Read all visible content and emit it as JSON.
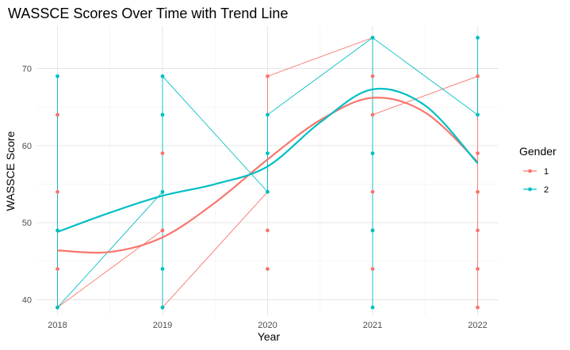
{
  "chart_data": {
    "type": "line",
    "title": "WASSCE Scores Over Time with Trend Line",
    "xlabel": "Year",
    "ylabel": "WASSCE Score",
    "x_ticks": [
      2018,
      2019,
      2020,
      2021,
      2022
    ],
    "y_ticks": [
      40,
      50,
      60,
      70
    ],
    "xlim": [
      2017.8,
      2022.2
    ],
    "ylim": [
      38,
      75.5
    ],
    "grid": true,
    "legend": {
      "title": "Gender",
      "position": "right"
    },
    "colors": {
      "1": "#F8766D",
      "2": "#00BFC4"
    },
    "series": [
      {
        "name": "1",
        "color": "#F8766D",
        "points": [
          {
            "x": 2018,
            "y": 64
          },
          {
            "x": 2018,
            "y": 54
          },
          {
            "x": 2018,
            "y": 44
          },
          {
            "x": 2018,
            "y": 39
          },
          {
            "x": 2019,
            "y": 59
          },
          {
            "x": 2019,
            "y": 49
          },
          {
            "x": 2019,
            "y": 39
          },
          {
            "x": 2020,
            "y": 69
          },
          {
            "x": 2020,
            "y": 54
          },
          {
            "x": 2020,
            "y": 49
          },
          {
            "x": 2020,
            "y": 44
          },
          {
            "x": 2021,
            "y": 74
          },
          {
            "x": 2021,
            "y": 69
          },
          {
            "x": 2021,
            "y": 64
          },
          {
            "x": 2021,
            "y": 54
          },
          {
            "x": 2021,
            "y": 49
          },
          {
            "x": 2021,
            "y": 44
          },
          {
            "x": 2022,
            "y": 69
          },
          {
            "x": 2022,
            "y": 59
          },
          {
            "x": 2022,
            "y": 54
          },
          {
            "x": 2022,
            "y": 49
          },
          {
            "x": 2022,
            "y": 44
          },
          {
            "x": 2022,
            "y": 39
          }
        ],
        "path": [
          {
            "x": 2018,
            "y": 64
          },
          {
            "x": 2018,
            "y": 39
          },
          {
            "x": 2019,
            "y": 49
          },
          {
            "x": 2019,
            "y": 39
          },
          {
            "x": 2020,
            "y": 54
          },
          {
            "x": 2020,
            "y": 69
          },
          {
            "x": 2021,
            "y": 74
          },
          {
            "x": 2021,
            "y": 64
          },
          {
            "x": 2022,
            "y": 69
          },
          {
            "x": 2022,
            "y": 39
          }
        ],
        "trend": [
          {
            "x": 2018,
            "y": 46.4
          },
          {
            "x": 2018.5,
            "y": 46.2
          },
          {
            "x": 2019,
            "y": 48.1
          },
          {
            "x": 2019.5,
            "y": 52.6
          },
          {
            "x": 2020,
            "y": 58.2
          },
          {
            "x": 2020.5,
            "y": 63.3
          },
          {
            "x": 2021,
            "y": 66.2
          },
          {
            "x": 2021.5,
            "y": 64.3
          },
          {
            "x": 2022,
            "y": 57.9
          }
        ]
      },
      {
        "name": "2",
        "color": "#00BFC4",
        "points": [
          {
            "x": 2018,
            "y": 69
          },
          {
            "x": 2018,
            "y": 49
          },
          {
            "x": 2018,
            "y": 39
          },
          {
            "x": 2019,
            "y": 69
          },
          {
            "x": 2019,
            "y": 64
          },
          {
            "x": 2019,
            "y": 54
          },
          {
            "x": 2019,
            "y": 44
          },
          {
            "x": 2019,
            "y": 39
          },
          {
            "x": 2020,
            "y": 64
          },
          {
            "x": 2020,
            "y": 59
          },
          {
            "x": 2020,
            "y": 54
          },
          {
            "x": 2021,
            "y": 74
          },
          {
            "x": 2021,
            "y": 59
          },
          {
            "x": 2021,
            "y": 49
          },
          {
            "x": 2021,
            "y": 39
          },
          {
            "x": 2022,
            "y": 74
          },
          {
            "x": 2022,
            "y": 64
          }
        ],
        "path": [
          {
            "x": 2018,
            "y": 69
          },
          {
            "x": 2018,
            "y": 39
          },
          {
            "x": 2019,
            "y": 54
          },
          {
            "x": 2019,
            "y": 39
          },
          {
            "x": 2019,
            "y": 69
          },
          {
            "x": 2020,
            "y": 54
          },
          {
            "x": 2020,
            "y": 64
          },
          {
            "x": 2021,
            "y": 74
          },
          {
            "x": 2021,
            "y": 39
          },
          {
            "x": 2021,
            "y": 74
          },
          {
            "x": 2022,
            "y": 64
          },
          {
            "x": 2022,
            "y": 74
          },
          {
            "x": 2022,
            "y": 64
          }
        ],
        "trend": [
          {
            "x": 2018,
            "y": 48.8
          },
          {
            "x": 2018.5,
            "y": 51.3
          },
          {
            "x": 2019,
            "y": 53.5
          },
          {
            "x": 2019.5,
            "y": 55.0
          },
          {
            "x": 2020,
            "y": 57.3
          },
          {
            "x": 2020.5,
            "y": 63.0
          },
          {
            "x": 2021,
            "y": 67.3
          },
          {
            "x": 2021.5,
            "y": 65.2
          },
          {
            "x": 2022,
            "y": 57.7
          }
        ]
      }
    ]
  }
}
